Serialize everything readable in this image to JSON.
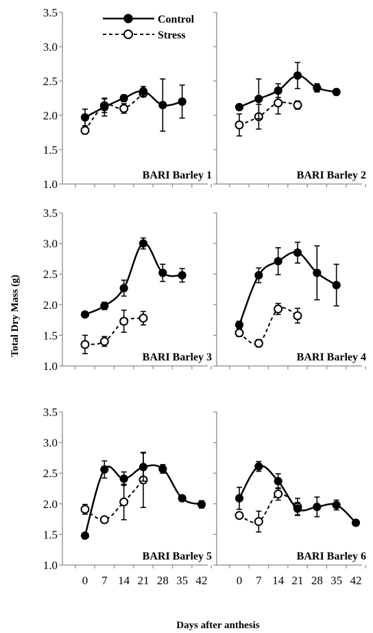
{
  "figure": {
    "ylabel": "Total Dry Mass (g)",
    "xlabel": "Days after anthesis",
    "legend": [
      {
        "name": "Control",
        "marker": "filled-circle",
        "line": "solid"
      },
      {
        "name": "Stress",
        "marker": "open-circle",
        "line": "dashed"
      }
    ]
  },
  "chart_data": [
    {
      "type": "line",
      "title": "BARI Barley 1",
      "x_ticks": [
        0,
        7,
        14,
        21,
        28,
        35,
        42
      ],
      "y_ticks": [
        "1.0",
        "1.5",
        "2.0",
        "2.5",
        "3.0",
        "3.5"
      ],
      "ylim": [
        1.0,
        3.5
      ],
      "series": [
        {
          "name": "Control",
          "x": [
            0,
            7,
            14,
            21,
            28,
            35
          ],
          "y": [
            1.97,
            2.12,
            2.25,
            2.35,
            2.15,
            2.2
          ],
          "err": [
            0.12,
            0.13,
            0.05,
            0.07,
            0.38,
            0.24
          ]
        },
        {
          "name": "Stress",
          "x": [
            0,
            7,
            14,
            21
          ],
          "y": [
            1.78,
            2.14,
            2.1,
            2.32
          ],
          "err": [
            0.05,
            0.1,
            0.07,
            0.05
          ]
        }
      ]
    },
    {
      "type": "line",
      "title": "BARI Barley 2",
      "x_ticks": [
        0,
        7,
        14,
        21,
        28,
        35,
        42
      ],
      "y_ticks": [
        "1.0",
        "1.5",
        "2.0",
        "2.5",
        "3.0",
        "3.5"
      ],
      "ylim": [
        1.0,
        3.5
      ],
      "series": [
        {
          "name": "Control",
          "x": [
            0,
            7,
            14,
            21,
            28,
            35
          ],
          "y": [
            2.12,
            2.24,
            2.36,
            2.58,
            2.4,
            2.34
          ],
          "err": [
            0.03,
            0.29,
            0.1,
            0.19,
            0.06,
            0.04
          ]
        },
        {
          "name": "Stress",
          "x": [
            0,
            7,
            14,
            21
          ],
          "y": [
            1.86,
            1.98,
            2.18,
            2.15
          ],
          "err": [
            0.16,
            0.18,
            0.16,
            0.06
          ]
        }
      ]
    },
    {
      "type": "line",
      "title": "BARI Barley 3",
      "x_ticks": [
        0,
        7,
        14,
        21,
        28,
        35,
        42
      ],
      "y_ticks": [
        "1.0",
        "1.5",
        "2.0",
        "2.5",
        "3.0",
        "3.5"
      ],
      "ylim": [
        1.0,
        3.5
      ],
      "series": [
        {
          "name": "Control",
          "x": [
            0,
            7,
            14,
            21,
            28,
            35
          ],
          "y": [
            1.84,
            1.98,
            2.27,
            3.0,
            2.52,
            2.48
          ],
          "err": [
            0.04,
            0.06,
            0.13,
            0.09,
            0.14,
            0.11
          ]
        },
        {
          "name": "Stress",
          "x": [
            0,
            7,
            14,
            21
          ],
          "y": [
            1.35,
            1.4,
            1.73,
            1.78
          ],
          "err": [
            0.15,
            0.08,
            0.18,
            0.11
          ]
        }
      ]
    },
    {
      "type": "line",
      "title": "BARI Barley 4",
      "x_ticks": [
        0,
        7,
        14,
        21,
        28,
        35,
        42
      ],
      "y_ticks": [
        "1.0",
        "1.5",
        "2.0",
        "2.5",
        "3.0",
        "3.5"
      ],
      "ylim": [
        1.0,
        3.5
      ],
      "series": [
        {
          "name": "Control",
          "x": [
            0,
            7,
            14,
            21,
            28,
            35
          ],
          "y": [
            1.67,
            2.48,
            2.71,
            2.85,
            2.52,
            2.32
          ],
          "err": [
            0.06,
            0.12,
            0.22,
            0.17,
            0.44,
            0.34
          ]
        },
        {
          "name": "Stress",
          "x": [
            0,
            7,
            14,
            21
          ],
          "y": [
            1.54,
            1.37,
            1.93,
            1.82
          ],
          "err": [
            0.06,
            0.06,
            0.09,
            0.12
          ]
        }
      ]
    },
    {
      "type": "line",
      "title": "BARI Barley 5",
      "x_ticks": [
        0,
        7,
        14,
        21,
        28,
        35,
        42
      ],
      "y_ticks": [
        "1.0",
        "1.5",
        "2.0",
        "2.5",
        "3.0",
        "3.5"
      ],
      "ylim": [
        1.0,
        3.5
      ],
      "series": [
        {
          "name": "Control",
          "x": [
            0,
            7,
            14,
            21,
            28,
            35,
            42
          ],
          "y": [
            1.48,
            2.56,
            2.41,
            2.6,
            2.57,
            2.09,
            1.99
          ],
          "err": [
            0,
            0.14,
            0.11,
            0.23,
            0.07,
            0.03,
            0.06
          ]
        },
        {
          "name": "Stress",
          "x": [
            0,
            7,
            14,
            21
          ],
          "y": [
            1.91,
            1.74,
            2.03,
            2.39
          ],
          "err": [
            0.08,
            0.02,
            0.29,
            0.45
          ]
        }
      ]
    },
    {
      "type": "line",
      "title": "BARI Barley 6",
      "x_ticks": [
        0,
        7,
        14,
        21,
        28,
        35,
        42
      ],
      "y_ticks": [
        "1.0",
        "1.5",
        "2.0",
        "2.5",
        "3.0",
        "3.5"
      ],
      "ylim": [
        1.0,
        3.5
      ],
      "series": [
        {
          "name": "Control",
          "x": [
            0,
            7,
            14,
            21,
            28,
            35,
            42
          ],
          "y": [
            2.09,
            2.61,
            2.37,
            1.92,
            1.95,
            1.98,
            1.69
          ],
          "err": [
            0.18,
            0.08,
            0.12,
            0.1,
            0.16,
            0.08,
            0
          ]
        },
        {
          "name": "Stress",
          "x": [
            0,
            7,
            14,
            21
          ],
          "y": [
            1.81,
            1.71,
            2.16,
            1.95
          ],
          "err": [
            0.05,
            0.17,
            0.1,
            0.14
          ]
        }
      ]
    }
  ]
}
